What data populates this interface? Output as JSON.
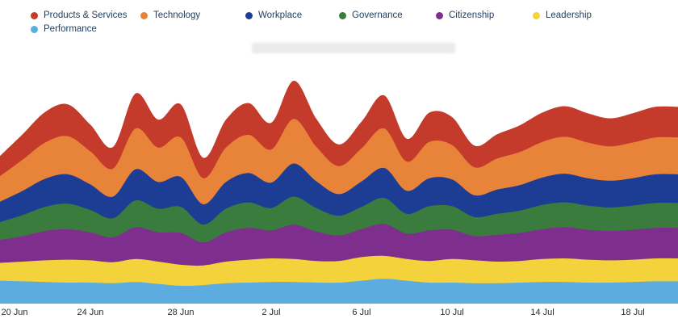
{
  "legend_rows": [
    [
      {
        "label": "Products & Services",
        "color": "#c43b2c"
      },
      {
        "label": "Technology",
        "color": "#e8833a"
      },
      {
        "label": "Workplace",
        "color": "#1d3c94"
      },
      {
        "label": "Governance",
        "color": "#3a7c3e"
      },
      {
        "label": "Citizenship",
        "color": "#7e2f8d"
      },
      {
        "label": "Leadership",
        "color": "#f3d23b"
      }
    ],
    [
      {
        "label": "Performance",
        "color": "#5cacdf"
      }
    ]
  ],
  "chart_data": {
    "type": "area",
    "stacked": true,
    "grid": false,
    "legend_position": "top-left",
    "x": [
      "20 Jun",
      "21 Jun",
      "22 Jun",
      "23 Jun",
      "24 Jun",
      "25 Jun",
      "26 Jun",
      "27 Jun",
      "28 Jun",
      "29 Jun",
      "30 Jun",
      "1 Jul",
      "2 Jul",
      "3 Jul",
      "4 Jul",
      "5 Jul",
      "6 Jul",
      "7 Jul",
      "8 Jul",
      "9 Jul",
      "10 Jul",
      "11 Jul",
      "12 Jul",
      "13 Jul",
      "14 Jul",
      "15 Jul",
      "16 Jul",
      "17 Jul",
      "18 Jul",
      "19 Jul",
      "20 Jul"
    ],
    "x_tick_labels": [
      "20 Jun",
      "24 Jun",
      "28 Jun",
      "2 Jul",
      "6 Jul",
      "10 Jul",
      "14 Jul",
      "18 Jul"
    ],
    "x_tick_indices": [
      0,
      4,
      8,
      12,
      16,
      20,
      24,
      28
    ],
    "ylabel": "",
    "xlabel": "",
    "series": [
      {
        "name": "Performance",
        "color": "#5cacdf",
        "values": [
          36,
          35,
          34,
          33,
          33,
          32,
          34,
          31,
          28,
          29,
          32,
          33,
          34,
          34,
          33,
          33,
          36,
          39,
          36,
          33,
          33,
          32,
          32,
          33,
          34,
          34,
          33,
          33,
          34,
          35,
          35
        ]
      },
      {
        "name": "Leadership",
        "color": "#f3d23b",
        "values": [
          28,
          31,
          34,
          36,
          35,
          33,
          36,
          35,
          33,
          31,
          34,
          36,
          37,
          36,
          34,
          34,
          37,
          36,
          34,
          34,
          37,
          36,
          34,
          34,
          36,
          37,
          36,
          35,
          35,
          36,
          36
        ]
      },
      {
        "name": "Citizenship",
        "color": "#7e2f8d",
        "values": [
          36,
          40,
          46,
          48,
          44,
          39,
          50,
          46,
          50,
          36,
          46,
          50,
          44,
          54,
          46,
          40,
          44,
          50,
          40,
          48,
          46,
          38,
          42,
          44,
          47,
          49,
          47,
          46,
          47,
          48,
          48
        ]
      },
      {
        "name": "Governance",
        "color": "#3a7c3e",
        "values": [
          28,
          33,
          38,
          40,
          35,
          30,
          42,
          37,
          41,
          28,
          37,
          40,
          35,
          44,
          37,
          31,
          35,
          41,
          31,
          38,
          37,
          30,
          33,
          35,
          38,
          39,
          38,
          37,
          38,
          39,
          39
        ]
      },
      {
        "name": "Workplace",
        "color": "#1d3c94",
        "values": [
          32,
          38,
          44,
          46,
          40,
          34,
          49,
          42,
          47,
          32,
          42,
          46,
          40,
          52,
          42,
          34,
          40,
          47,
          36,
          44,
          42,
          34,
          38,
          40,
          43,
          45,
          43,
          42,
          43,
          45,
          45
        ]
      },
      {
        "name": "Technology",
        "color": "#e8833a",
        "values": [
          40,
          49,
          57,
          60,
          52,
          44,
          64,
          54,
          62,
          41,
          54,
          60,
          52,
          70,
          54,
          44,
          52,
          62,
          46,
          57,
          54,
          44,
          49,
          52,
          56,
          58,
          56,
          54,
          56,
          58,
          58
        ]
      },
      {
        "name": "Products & Services",
        "color": "#c43b2c",
        "values": [
          32,
          40,
          48,
          50,
          42,
          34,
          55,
          44,
          52,
          32,
          44,
          50,
          42,
          60,
          44,
          34,
          42,
          52,
          36,
          46,
          44,
          34,
          38,
          42,
          46,
          48,
          46,
          44,
          46,
          48,
          48
        ]
      }
    ]
  }
}
